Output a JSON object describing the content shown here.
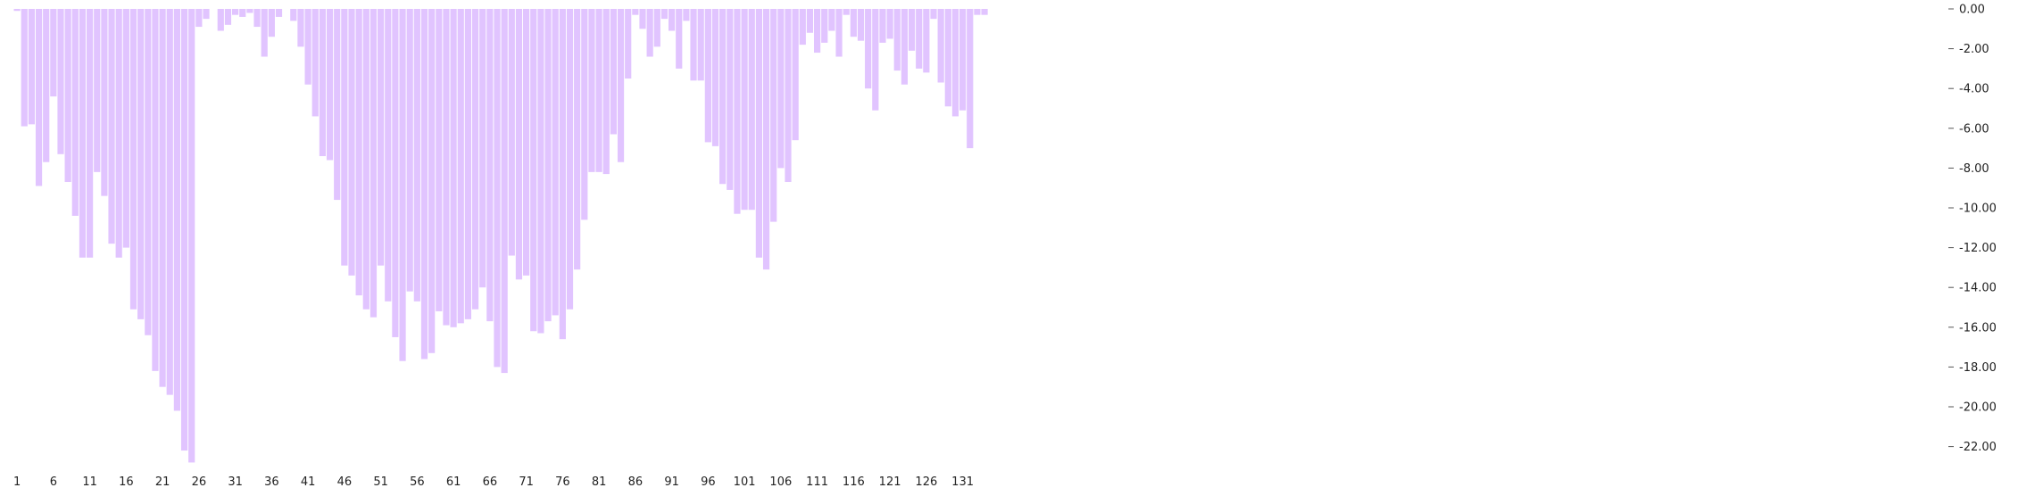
{
  "chart_data": {
    "type": "bar",
    "x_tick_labels": [
      "1",
      "6",
      "11",
      "16",
      "21",
      "26",
      "31",
      "36",
      "41",
      "46",
      "51",
      "56",
      "61",
      "66",
      "71",
      "76",
      "81",
      "86",
      "91",
      "96",
      "101",
      "106",
      "111",
      "116",
      "121",
      "126",
      "131"
    ],
    "y_tick_labels": [
      "0.00",
      "-2.00",
      "-4.00",
      "-6.00",
      "-8.00",
      "-10.00",
      "-12.00",
      "-14.00",
      "-16.00",
      "-18.00",
      "-20.00",
      "-22.00"
    ],
    "ylim": [
      -23.4,
      0
    ],
    "y_axis_position": "right",
    "bar_color": "#e1c4ff",
    "grid": false,
    "values": [
      -0.1,
      -5.9,
      -5.8,
      -8.9,
      -7.7,
      -4.4,
      -7.3,
      -8.7,
      -10.4,
      -12.5,
      -12.5,
      -8.2,
      -9.4,
      -11.8,
      -12.5,
      -12.0,
      -15.1,
      -15.6,
      -16.4,
      -18.2,
      -19.0,
      -19.4,
      -20.2,
      -22.2,
      -22.8,
      -0.9,
      -0.5,
      0,
      -1.1,
      -0.8,
      -0.3,
      -0.4,
      -0.2,
      -0.9,
      -2.4,
      -1.4,
      -0.4,
      0,
      -0.6,
      -1.9,
      -3.8,
      -5.4,
      -7.4,
      -7.6,
      -9.6,
      -12.9,
      -13.4,
      -14.4,
      -15.1,
      -15.5,
      -12.9,
      -14.7,
      -16.5,
      -17.7,
      -14.2,
      -14.7,
      -17.6,
      -17.3,
      -15.2,
      -15.9,
      -16.0,
      -15.8,
      -15.6,
      -15.1,
      -14.0,
      -15.7,
      -18.0,
      -18.3,
      -12.4,
      -13.6,
      -13.4,
      -16.2,
      -16.3,
      -15.7,
      -15.4,
      -16.6,
      -15.1,
      -13.1,
      -10.6,
      -8.2,
      -8.2,
      -8.3,
      -6.3,
      -7.7,
      -3.5,
      -0.3,
      -1.0,
      -2.4,
      -1.9,
      -0.5,
      -1.1,
      -3.0,
      -0.6,
      -3.6,
      -3.6,
      -6.7,
      -6.9,
      -8.8,
      -9.1,
      -10.3,
      -10.1,
      -10.1,
      -12.5,
      -13.1,
      -10.7,
      -8.0,
      -8.7,
      -6.6,
      -1.8,
      -1.2,
      -2.2,
      -1.7,
      -1.1,
      -2.4,
      -0.3,
      -1.4,
      -1.6,
      -4.0,
      -5.1,
      -1.7,
      -1.5,
      -3.1,
      -3.8,
      -2.1,
      -3.0,
      -3.2,
      -0.5,
      -3.7,
      -4.9,
      -5.4,
      -5.1,
      -7.0,
      -0.3,
      -0.3
    ]
  }
}
